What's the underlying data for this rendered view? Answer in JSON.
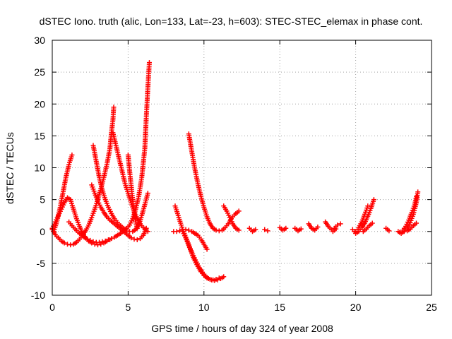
{
  "chart_data": {
    "type": "scatter",
    "title": "dSTEC Iono. truth (alic, Lon=133, Lat=-23, h=603): STEC-STEC_elemax in phase cont.",
    "xlabel": "GPS time / hours of day 324 of year 2008",
    "ylabel": "dSTEC  / TECUs",
    "xlim": [
      0,
      25
    ],
    "ylim": [
      -10,
      30
    ],
    "xticks": [
      0,
      5,
      10,
      15,
      20,
      25
    ],
    "yticks": [
      -10,
      -5,
      0,
      5,
      10,
      15,
      20,
      25,
      30
    ],
    "grid": true,
    "legend": "none",
    "marker": "plus",
    "color": "#ff0000",
    "series": [
      {
        "values": [
          [
            0.0,
            0.5
          ],
          [
            0.2,
            1.5
          ],
          [
            0.4,
            2.5
          ],
          [
            0.6,
            3.5
          ],
          [
            0.8,
            4.5
          ],
          [
            1.0,
            5.3
          ],
          [
            1.2,
            5.0
          ],
          [
            1.4,
            3.5
          ],
          [
            1.6,
            2.0
          ],
          [
            1.8,
            0.8
          ],
          [
            2.0,
            -0.3
          ],
          [
            2.2,
            -1.0
          ],
          [
            2.4,
            -1.5
          ],
          [
            2.6,
            -1.8
          ],
          [
            2.8,
            -2.0
          ],
          [
            3.0,
            -2.1
          ],
          [
            3.2,
            -2.0
          ],
          [
            3.4,
            -1.8
          ],
          [
            3.6,
            -1.5
          ],
          [
            3.8,
            -1.3
          ]
        ]
      },
      {
        "values": [
          [
            0.0,
            0.3
          ],
          [
            0.2,
            -0.5
          ],
          [
            0.4,
            -1.0
          ],
          [
            0.6,
            -1.5
          ],
          [
            0.8,
            -1.8
          ],
          [
            1.0,
            -2.0
          ],
          [
            1.2,
            -2.1
          ],
          [
            1.4,
            -2.0
          ],
          [
            1.6,
            -1.7
          ],
          [
            1.8,
            -1.2
          ],
          [
            2.0,
            -0.6
          ],
          [
            2.2,
            0.1
          ],
          [
            2.4,
            1.0
          ],
          [
            2.6,
            2.2
          ],
          [
            2.8,
            3.5
          ],
          [
            3.0,
            5.0
          ],
          [
            3.2,
            6.7
          ],
          [
            3.4,
            8.5
          ],
          [
            3.6,
            10.5
          ],
          [
            3.8,
            13.0
          ],
          [
            3.9,
            15.5
          ],
          [
            4.0,
            17.5
          ],
          [
            4.05,
            19.5
          ]
        ]
      },
      {
        "values": [
          [
            0.1,
            0.0
          ],
          [
            0.3,
            1.5
          ],
          [
            0.5,
            3.5
          ],
          [
            0.7,
            6.0
          ],
          [
            0.9,
            8.5
          ],
          [
            1.1,
            10.5
          ],
          [
            1.3,
            12.0
          ]
        ]
      },
      {
        "values": [
          [
            2.7,
            13.5
          ],
          [
            2.9,
            11.0
          ],
          [
            3.1,
            8.5
          ],
          [
            3.3,
            6.5
          ],
          [
            3.5,
            5.0
          ],
          [
            3.7,
            3.8
          ],
          [
            3.9,
            2.8
          ],
          [
            4.1,
            2.0
          ],
          [
            4.3,
            1.4
          ],
          [
            4.5,
            0.9
          ],
          [
            4.7,
            0.5
          ],
          [
            4.9,
            0.2
          ],
          [
            5.1,
            0.0
          ],
          [
            5.3,
            0.0
          ],
          [
            5.5,
            0.3
          ],
          [
            5.7,
            1.0
          ],
          [
            5.9,
            2.5
          ],
          [
            6.1,
            4.2
          ],
          [
            6.3,
            6.0
          ]
        ]
      },
      {
        "values": [
          [
            4.0,
            15.5
          ],
          [
            4.2,
            13.5
          ],
          [
            4.4,
            11.5
          ],
          [
            4.6,
            9.5
          ],
          [
            4.8,
            7.5
          ],
          [
            5.0,
            6.0
          ],
          [
            5.2,
            4.5
          ],
          [
            5.4,
            3.2
          ],
          [
            5.6,
            2.0
          ],
          [
            5.8,
            1.2
          ],
          [
            6.0,
            0.6
          ],
          [
            6.2,
            0.2
          ],
          [
            6.3,
            0.0
          ]
        ]
      },
      {
        "values": [
          [
            2.6,
            7.3
          ],
          [
            2.8,
            6.0
          ],
          [
            3.0,
            4.8
          ],
          [
            3.2,
            3.8
          ],
          [
            3.4,
            3.0
          ],
          [
            3.6,
            2.3
          ],
          [
            3.8,
            1.8
          ],
          [
            4.0,
            1.4
          ],
          [
            4.2,
            1.0
          ],
          [
            4.4,
            0.6
          ],
          [
            4.6,
            0.2
          ],
          [
            4.8,
            -0.2
          ],
          [
            5.0,
            -0.6
          ],
          [
            5.2,
            -1.0
          ],
          [
            5.4,
            -1.2
          ],
          [
            5.6,
            -1.3
          ],
          [
            5.8,
            -1.1
          ],
          [
            6.0,
            -0.6
          ],
          [
            6.2,
            0.5
          ]
        ]
      },
      {
        "values": [
          [
            1.1,
            1.5
          ],
          [
            1.3,
            0.9
          ],
          [
            1.5,
            0.4
          ],
          [
            1.7,
            -0.1
          ],
          [
            1.9,
            -0.5
          ],
          [
            2.1,
            -0.9
          ],
          [
            2.3,
            -1.2
          ],
          [
            2.5,
            -1.4
          ],
          [
            2.7,
            -1.6
          ],
          [
            2.9,
            -1.7
          ],
          [
            3.1,
            -1.7
          ],
          [
            3.3,
            -1.6
          ],
          [
            3.5,
            -1.5
          ],
          [
            3.7,
            -1.3
          ],
          [
            3.9,
            -1.1
          ],
          [
            4.1,
            -0.9
          ],
          [
            4.3,
            -0.6
          ],
          [
            4.5,
            -0.3
          ],
          [
            4.7,
            0.1
          ],
          [
            4.9,
            0.5
          ],
          [
            5.1,
            1.0
          ],
          [
            5.3,
            2.0
          ],
          [
            5.5,
            3.5
          ],
          [
            5.7,
            5.5
          ],
          [
            5.9,
            8.5
          ],
          [
            6.1,
            13.0
          ],
          [
            6.2,
            18.0
          ],
          [
            6.3,
            22.5
          ],
          [
            6.4,
            26.5
          ]
        ]
      },
      {
        "values": [
          [
            5.0,
            12.0
          ],
          [
            5.1,
            9.5
          ],
          [
            5.2,
            7.2
          ],
          [
            5.3,
            5.0
          ],
          [
            5.4,
            3.0
          ],
          [
            5.5,
            1.5
          ],
          [
            5.6,
            0.5
          ]
        ]
      },
      {
        "values": [
          [
            8.0,
            0.0
          ],
          [
            8.2,
            0.0
          ],
          [
            8.4,
            0.1
          ],
          [
            8.6,
            0.3
          ],
          [
            8.8,
            0.3
          ],
          [
            9.0,
            0.2
          ],
          [
            9.2,
            0.0
          ],
          [
            9.4,
            -0.3
          ],
          [
            9.6,
            -0.6
          ],
          [
            9.8,
            -1.2
          ],
          [
            10.0,
            -2.0
          ],
          [
            10.2,
            -2.8
          ]
        ]
      },
      {
        "values": [
          [
            8.1,
            4.0
          ],
          [
            8.3,
            2.5
          ],
          [
            8.5,
            1.0
          ],
          [
            8.7,
            -0.3
          ],
          [
            8.9,
            -1.5
          ],
          [
            9.1,
            -2.7
          ],
          [
            9.3,
            -3.8
          ],
          [
            9.5,
            -4.8
          ],
          [
            9.7,
            -5.7
          ],
          [
            9.9,
            -6.4
          ],
          [
            10.1,
            -7.0
          ],
          [
            10.3,
            -7.4
          ],
          [
            10.5,
            -7.6
          ],
          [
            10.7,
            -7.7
          ],
          [
            10.9,
            -7.6
          ],
          [
            11.1,
            -7.4
          ],
          [
            11.3,
            -7.1
          ]
        ]
      },
      {
        "values": [
          [
            8.6,
            0.0
          ],
          [
            8.8,
            -1.0
          ],
          [
            9.0,
            -2.2
          ],
          [
            9.2,
            -3.5
          ],
          [
            9.4,
            -4.6
          ],
          [
            9.6,
            -5.5
          ],
          [
            9.8,
            -6.3
          ],
          [
            10.0,
            -6.9
          ],
          [
            10.2,
            -7.3
          ],
          [
            10.4,
            -7.5
          ],
          [
            10.6,
            -7.6
          ],
          [
            10.8,
            -7.5
          ],
          [
            11.0,
            -7.3
          ]
        ]
      },
      {
        "values": [
          [
            9.0,
            15.3
          ],
          [
            9.2,
            12.5
          ],
          [
            9.4,
            9.8
          ],
          [
            9.6,
            7.5
          ],
          [
            9.8,
            5.5
          ],
          [
            10.0,
            3.8
          ],
          [
            10.2,
            2.3
          ],
          [
            10.4,
            1.2
          ],
          [
            10.6,
            0.5
          ],
          [
            10.8,
            0.2
          ],
          [
            11.0,
            0.1
          ],
          [
            11.2,
            0.2
          ],
          [
            11.4,
            0.6
          ],
          [
            11.6,
            1.2
          ],
          [
            11.8,
            2.0
          ],
          [
            12.0,
            2.6
          ],
          [
            12.3,
            3.2
          ]
        ]
      },
      {
        "values": [
          [
            11.3,
            4.0
          ],
          [
            11.5,
            3.2
          ],
          [
            11.7,
            2.2
          ],
          [
            11.9,
            1.2
          ],
          [
            12.1,
            0.5
          ],
          [
            12.3,
            0.2
          ]
        ]
      },
      {
        "values": [
          [
            13.0,
            0.5
          ],
          [
            13.2,
            0.0
          ],
          [
            13.4,
            0.3
          ]
        ]
      },
      {
        "values": [
          [
            14.0,
            0.3
          ],
          [
            14.2,
            0.1
          ]
        ]
      },
      {
        "values": [
          [
            15.0,
            0.6
          ],
          [
            15.2,
            0.2
          ],
          [
            15.4,
            0.5
          ]
        ]
      },
      {
        "values": [
          [
            16.0,
            0.5
          ],
          [
            16.2,
            0.1
          ],
          [
            16.4,
            0.4
          ]
        ]
      },
      {
        "values": [
          [
            16.9,
            1.2
          ],
          [
            17.1,
            0.5
          ],
          [
            17.3,
            0.2
          ],
          [
            17.5,
            0.7
          ]
        ]
      },
      {
        "values": [
          [
            18.0,
            1.5
          ],
          [
            18.2,
            0.8
          ],
          [
            18.4,
            0.3
          ],
          [
            18.6,
            0.5
          ],
          [
            18.8,
            1.0
          ],
          [
            19.0,
            1.2
          ]
        ]
      },
      {
        "values": [
          [
            18.5,
            0.0
          ],
          [
            18.7,
            0.4
          ]
        ]
      },
      {
        "values": [
          [
            19.8,
            0.3
          ],
          [
            20.0,
            -0.3
          ],
          [
            20.2,
            0.0
          ],
          [
            20.4,
            0.6
          ],
          [
            20.6,
            1.3
          ],
          [
            20.8,
            2.4
          ],
          [
            21.0,
            3.6
          ],
          [
            21.2,
            5.0
          ]
        ]
      },
      {
        "values": [
          [
            20.0,
            0.0
          ],
          [
            20.2,
            0.6
          ],
          [
            20.4,
            1.5
          ],
          [
            20.6,
            2.7
          ],
          [
            20.8,
            4.0
          ]
        ]
      },
      {
        "values": [
          [
            20.5,
            0.0
          ],
          [
            20.7,
            0.4
          ],
          [
            20.9,
            0.9
          ],
          [
            21.1,
            1.3
          ]
        ]
      },
      {
        "values": [
          [
            22.0,
            0.5
          ],
          [
            22.2,
            0.1
          ]
        ]
      },
      {
        "values": [
          [
            22.8,
            0.0
          ],
          [
            23.0,
            -0.3
          ],
          [
            23.2,
            0.0
          ],
          [
            23.4,
            0.6
          ],
          [
            23.6,
            1.4
          ],
          [
            23.8,
            2.7
          ],
          [
            24.0,
            4.5
          ],
          [
            24.1,
            6.2
          ]
        ]
      },
      {
        "values": [
          [
            23.1,
            0.2
          ],
          [
            23.3,
            0.8
          ],
          [
            23.5,
            1.8
          ],
          [
            23.7,
            3.0
          ],
          [
            23.9,
            4.3
          ],
          [
            24.0,
            5.5
          ]
        ]
      },
      {
        "values": [
          [
            23.4,
            0.1
          ],
          [
            23.6,
            0.4
          ],
          [
            23.8,
            0.9
          ],
          [
            24.0,
            1.3
          ]
        ]
      }
    ]
  }
}
